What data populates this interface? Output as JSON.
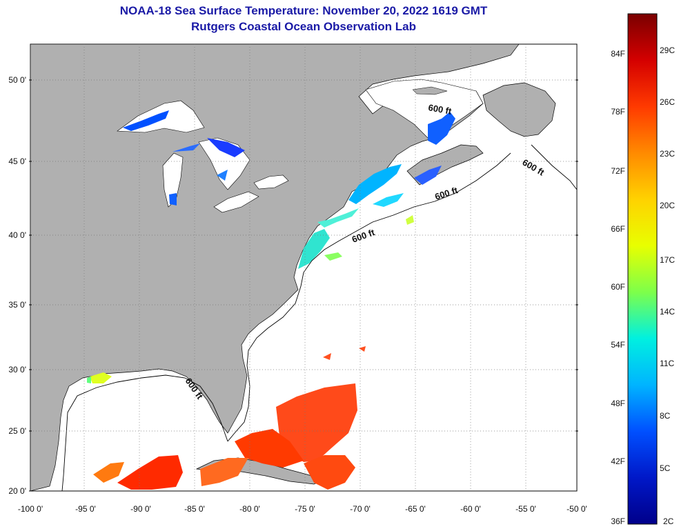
{
  "header": {
    "title_line1": "NOAA-18 Sea Surface Temperature:  November 20, 2022 1619 GMT",
    "title_line2": "Rutgers Coastal Ocean Observation Lab"
  },
  "map": {
    "lat_labels": [
      "50 0'",
      "45 0'",
      "40 0'",
      "35 0'",
      "30 0'",
      "25 0'",
      "20 0'"
    ],
    "lon_labels": [
      "-100 0'",
      "-95 0'",
      "-90 0'",
      "-85 0'",
      "-80 0'",
      "-75 0'",
      "-70 0'",
      "-65 0'",
      "-60 0'",
      "-55 0'",
      "-50 0'"
    ],
    "contour_label": "600 ft",
    "colors": {
      "land": "#b0b0b0",
      "ocean": "#ffffff",
      "grid": "#888888"
    }
  },
  "colorbar": {
    "f_labels": [
      "84F",
      "78F",
      "72F",
      "66F",
      "60F",
      "54F",
      "48F",
      "42F",
      "36F"
    ],
    "c_labels": [
      "29C",
      "26C",
      "23C",
      "20C",
      "17C",
      "14C",
      "11C",
      "8C",
      "5C",
      "2C"
    ],
    "gradient": [
      "#7a0000",
      "#d40000",
      "#ff3a00",
      "#ff8a00",
      "#ffd200",
      "#e8ff00",
      "#7dff4a",
      "#00f0e0",
      "#00b4ff",
      "#0050ff",
      "#0018c8",
      "#00008a"
    ]
  }
}
